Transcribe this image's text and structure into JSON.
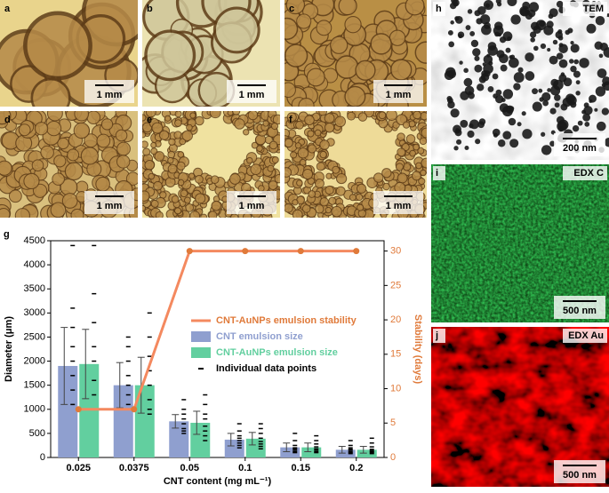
{
  "panels": [
    {
      "letter": "a",
      "scale": "1 mm"
    },
    {
      "letter": "b",
      "scale": "1 mm"
    },
    {
      "letter": "c",
      "scale": "1 mm"
    },
    {
      "letter": "d",
      "scale": "1 mm"
    },
    {
      "letter": "e",
      "scale": "1 mm"
    },
    {
      "letter": "f",
      "scale": "1 mm"
    }
  ],
  "right_panels": [
    {
      "letter": "h",
      "tag": "TEM",
      "scale": "200 nm"
    },
    {
      "letter": "i",
      "tag": "EDX C",
      "scale": "500 nm"
    },
    {
      "letter": "j",
      "tag": "EDX Au",
      "scale": "500 nm"
    }
  ],
  "chart_data": {
    "type": "bar",
    "panel_label": "g",
    "x_label": "CNT content (mg mL⁻¹)",
    "y_label": "Diameter (μm)",
    "y2_label": "Stability (days)",
    "categories": [
      "0.025",
      "0.0375",
      "0.05",
      "0.1",
      "0.15",
      "0.2"
    ],
    "ylim": [
      0,
      4500
    ],
    "yticks": [
      0,
      500,
      1000,
      1500,
      2000,
      2500,
      3000,
      3500,
      4000,
      4500
    ],
    "y2lim": [
      0,
      31.5
    ],
    "y2ticks": [
      0,
      5,
      10,
      15,
      20,
      25,
      30
    ],
    "points_legend": "Individual data points",
    "series": [
      {
        "name": "CNT-AuNPs emulsion stability",
        "type": "line",
        "axis": "y2",
        "color": "#f4895f",
        "values": [
          7,
          7,
          30,
          30,
          30,
          30
        ]
      },
      {
        "name": "CNT emulsion size",
        "type": "bar",
        "color": "#8f9fcf",
        "values": [
          1900,
          1500,
          750,
          370,
          210,
          160
        ],
        "errors": [
          800,
          470,
          140,
          130,
          90,
          70
        ],
        "points": [
          [
            4400,
            3100,
            2700,
            2300,
            2000,
            1700,
            1400,
            1100
          ],
          [
            2500,
            2300,
            2000,
            1700,
            1500,
            1300,
            1100,
            1000
          ],
          [
            1200,
            1000,
            900,
            800,
            700,
            600,
            550,
            500
          ],
          [
            700,
            550,
            450,
            400,
            350,
            300,
            250,
            200
          ],
          [
            500,
            350,
            250,
            200,
            180,
            150,
            120,
            100
          ],
          [
            350,
            250,
            200,
            170,
            150,
            120,
            100,
            80
          ]
        ]
      },
      {
        "name": "CNT-AuNPs emulsion size",
        "type": "bar",
        "color": "#62cf9f",
        "values": [
          1940,
          1500,
          720,
          390,
          210,
          160
        ],
        "errors": [
          720,
          580,
          240,
          130,
          90,
          70
        ],
        "points": [
          [
            4400,
            3400,
            2800,
            2300,
            2000,
            1600,
            1300,
            1000
          ],
          [
            3000,
            2500,
            2100,
            1800,
            1500,
            1200,
            1000,
            900
          ],
          [
            1300,
            1100,
            900,
            800,
            650,
            550,
            450,
            350
          ],
          [
            700,
            600,
            500,
            400,
            330,
            280,
            230,
            180
          ],
          [
            450,
            350,
            280,
            220,
            180,
            150,
            120,
            100
          ],
          [
            400,
            300,
            220,
            170,
            140,
            120,
            100,
            80
          ]
        ]
      }
    ]
  }
}
